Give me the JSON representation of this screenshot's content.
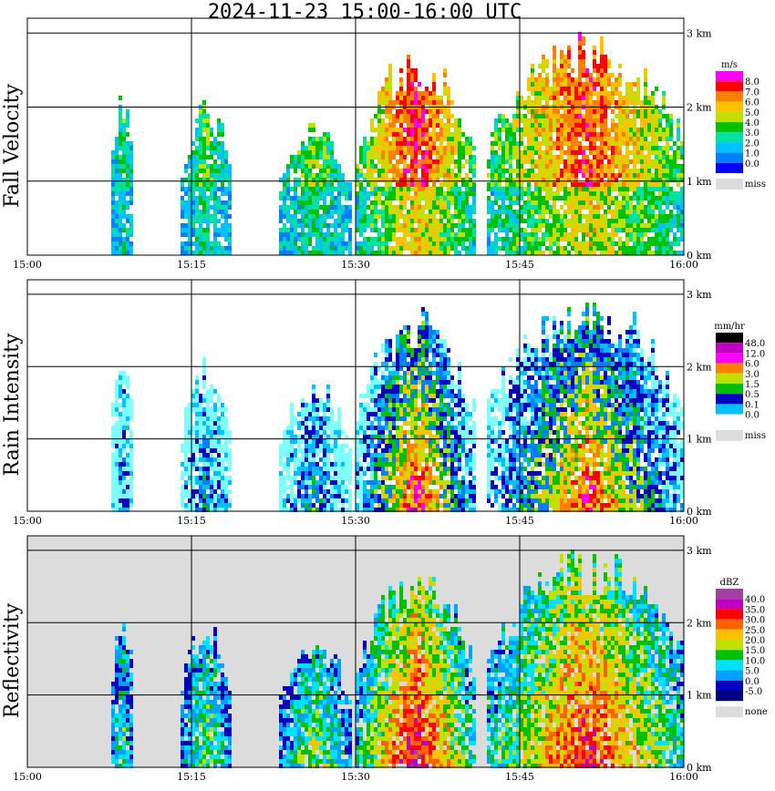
{
  "title": "2024-11-23   15:00-16:00 UTC",
  "colors": {
    "grid": "#000000",
    "missing": "#dcdcdc",
    "frame": "#000000"
  },
  "chart_data": [
    {
      "type": "heatmap",
      "ylabel": "Fall Velocity",
      "x_ticks": [
        "15:00",
        "15:15",
        "15:30",
        "15:45",
        "16:00"
      ],
      "y_ticks": [
        "0 km",
        "1 km",
        "2 km",
        "3 km"
      ],
      "ylim_km": [
        0,
        3.2
      ],
      "background": "white",
      "colorbar": {
        "unit": "m/s",
        "labels": [
          "8.0",
          "7.0",
          "6.0",
          "5.0",
          "4.0",
          "3.0",
          "2.0",
          "1.0",
          "0.0"
        ],
        "colors": [
          "#ff00ff",
          "#ff0000",
          "#ff8000",
          "#ffc000",
          "#c0e000",
          "#00c000",
          "#00e0a0",
          "#00c0ff",
          "#0080ff",
          "#0000ff"
        ],
        "missing_label": "miss"
      }
    },
    {
      "type": "heatmap",
      "ylabel": "Rain Intensity",
      "x_ticks": [
        "15:00",
        "15:15",
        "15:30",
        "15:45",
        "16:00"
      ],
      "y_ticks": [
        "0 km",
        "1 km",
        "2 km",
        "3 km"
      ],
      "ylim_km": [
        0,
        3.2
      ],
      "background": "white",
      "colorbar": {
        "unit": "mm/hr",
        "labels": [
          "48.0",
          "12.0",
          "6.0",
          "3.0",
          "1.5",
          "0.5",
          "0.1",
          "0.0"
        ],
        "colors": [
          "#000000",
          "#800080",
          "#c000c0",
          "#ff00ff",
          "#ff0000",
          "#ff8000",
          "#ffc000",
          "#c0e000",
          "#00c000",
          "#0080ff",
          "#0000c0",
          "#00c0ff",
          "#80ffff",
          "#ffffff"
        ],
        "missing_label": "miss"
      }
    },
    {
      "type": "heatmap",
      "ylabel": "Reflectivity",
      "x_ticks": [
        "15:00",
        "15:15",
        "15:30",
        "15:45",
        "16:00"
      ],
      "y_ticks": [
        "0 km",
        "1 km",
        "2 km",
        "3 km"
      ],
      "ylim_km": [
        0,
        3.2
      ],
      "background": "grey",
      "colorbar": {
        "unit": "dBZ",
        "labels": [
          "40.0",
          "35.0",
          "30.0",
          "25.0",
          "20.0",
          "15.0",
          "10.0",
          "5.0",
          "0.0",
          "-5.0"
        ],
        "colors": [
          "#a040a0",
          "#c000c0",
          "#ff0000",
          "#ff6000",
          "#ffc000",
          "#c0e000",
          "#00c000",
          "#00e0ff",
          "#00a0ff",
          "#0000c0",
          "#000080"
        ],
        "missing_label": "none"
      }
    }
  ]
}
